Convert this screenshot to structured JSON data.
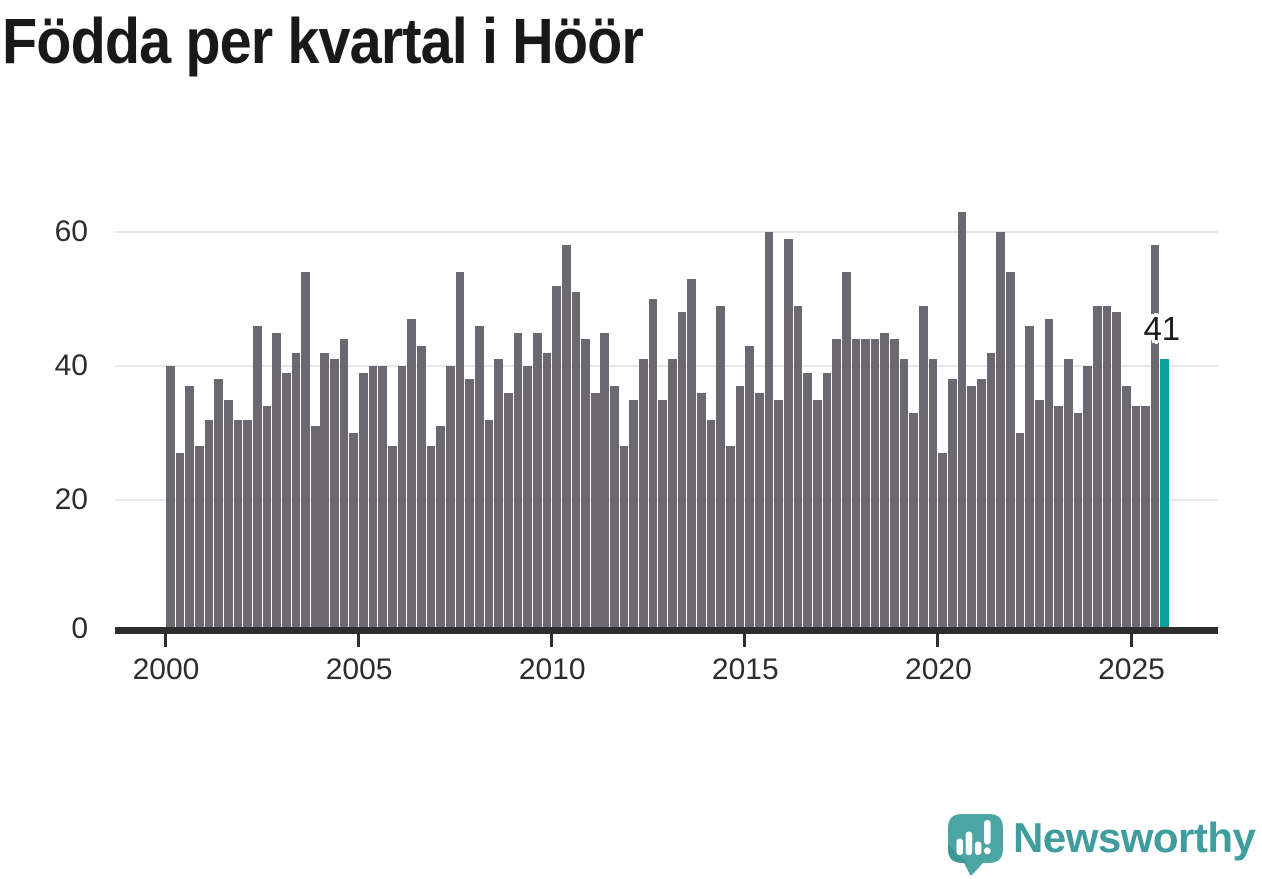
{
  "title": "Födda per kvartal i Höör",
  "annotation": {
    "label": "41"
  },
  "logo": {
    "brand": "Newsworthy",
    "icon": "newsworthy-speech-bubble-chart-icon"
  },
  "colors": {
    "background": "#ffffff",
    "title_text": "#191919",
    "bar": "#6c6872",
    "highlight_bar": "#0aa09f",
    "gridline": "#e8e8e8",
    "axis_line": "#2d2d2d",
    "axis_label": "#2d2d2d",
    "annotation_text": "#1a1a1a",
    "annotation_halo": "#ffffff",
    "logo_bubble": "#4aa5a3",
    "logo_bubble_shade": "#3a9593",
    "logo_marks": "#ffffff",
    "wordmark": "#3f9e9d"
  },
  "chart_data": {
    "type": "bar",
    "title": "Födda per kvartal i Höör",
    "x_unit": "quarter",
    "start_period": "2000 Q1",
    "bars_per_year": 4,
    "x_tick_positions": [
      0,
      20,
      40,
      60,
      80,
      100
    ],
    "x_tick_labels": [
      "2000",
      "2005",
      "2010",
      "2015",
      "2020",
      "2025"
    ],
    "y_ticks": [
      0,
      20,
      40,
      60
    ],
    "ylim": [
      0,
      66
    ],
    "grid": "horizontal",
    "legend": "none",
    "highlight_last_bar": true,
    "highlight_value_label": "41",
    "values": [
      40,
      27,
      37,
      28,
      32,
      38,
      35,
      32,
      32,
      46,
      34,
      45,
      39,
      42,
      54,
      31,
      42,
      41,
      44,
      30,
      39,
      40,
      40,
      28,
      40,
      47,
      43,
      28,
      31,
      40,
      54,
      38,
      46,
      32,
      41,
      36,
      45,
      40,
      45,
      42,
      52,
      58,
      51,
      44,
      36,
      45,
      37,
      28,
      35,
      41,
      50,
      35,
      41,
      48,
      53,
      36,
      32,
      49,
      28,
      37,
      43,
      36,
      60,
      35,
      59,
      49,
      39,
      35,
      39,
      44,
      54,
      44,
      44,
      44,
      45,
      44,
      41,
      33,
      49,
      41,
      27,
      38,
      63,
      37,
      38,
      42,
      60,
      54,
      30,
      46,
      35,
      47,
      34,
      41,
      33,
      40,
      49,
      49,
      48,
      37,
      34,
      34,
      58,
      41
    ]
  }
}
